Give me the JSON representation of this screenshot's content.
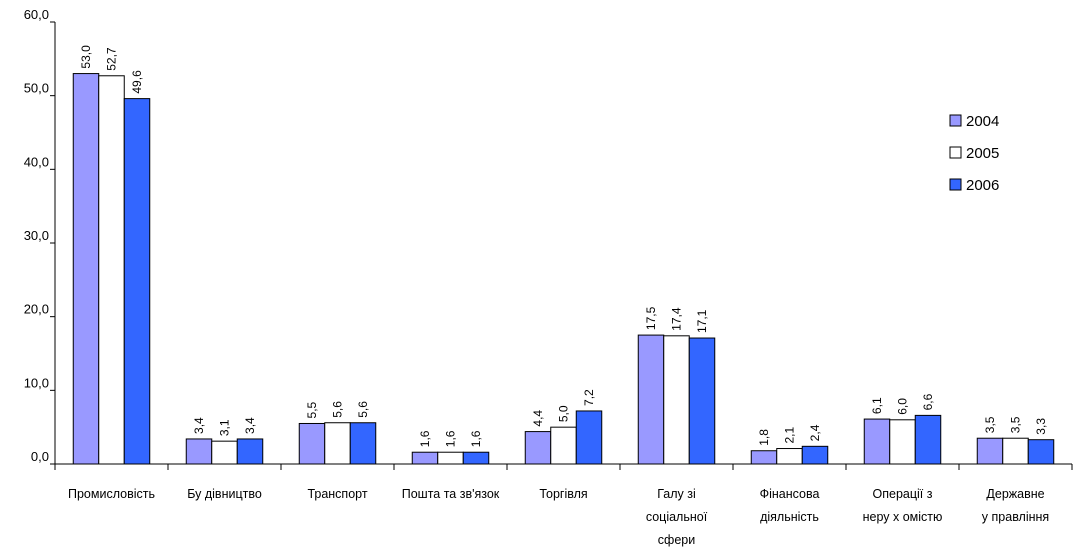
{
  "chart_data": {
    "type": "bar",
    "categories": [
      [
        "Промисловість"
      ],
      [
        "Бу дівництво"
      ],
      [
        "Транспорт"
      ],
      [
        "Пошта та зв'язок"
      ],
      [
        "Торгівля"
      ],
      [
        "Галу зі",
        "соціальної",
        "сфери"
      ],
      [
        "Фінансова",
        "діяльність"
      ],
      [
        "Операції з",
        "неру х омістю"
      ],
      [
        "Державне",
        "у правління"
      ]
    ],
    "series": [
      {
        "name": "2004",
        "color": "#9999ff",
        "values": [
          53.0,
          3.4,
          5.5,
          1.6,
          4.4,
          17.5,
          1.8,
          6.1,
          3.5
        ],
        "labels": [
          "53,0",
          "3,4",
          "5,5",
          "1,6",
          "4,4",
          "17,5",
          "1,8",
          "6,1",
          "3,5"
        ]
      },
      {
        "name": "2005",
        "color": "#ffffff",
        "values": [
          52.7,
          3.1,
          5.6,
          1.6,
          5.0,
          17.4,
          2.1,
          6.0,
          3.5
        ],
        "labels": [
          "52,7",
          "3,1",
          "5,6",
          "1,6",
          "5,0",
          "17,4",
          "2,1",
          "6,0",
          "3,5"
        ]
      },
      {
        "name": "2006",
        "color": "#3366ff",
        "values": [
          49.6,
          3.4,
          5.6,
          1.6,
          7.2,
          17.1,
          2.4,
          6.6,
          3.3
        ],
        "labels": [
          "49,6",
          "3,4",
          "5,6",
          "1,6",
          "7,2",
          "17,1",
          "2,4",
          "6,6",
          "3,3"
        ]
      }
    ],
    "y_ticks": [
      "0,0",
      "10,0",
      "20,0",
      "30,0",
      "40,0",
      "50,0",
      "60,0"
    ],
    "ylim": [
      0,
      60
    ],
    "grid": false,
    "legend_position": "right"
  }
}
